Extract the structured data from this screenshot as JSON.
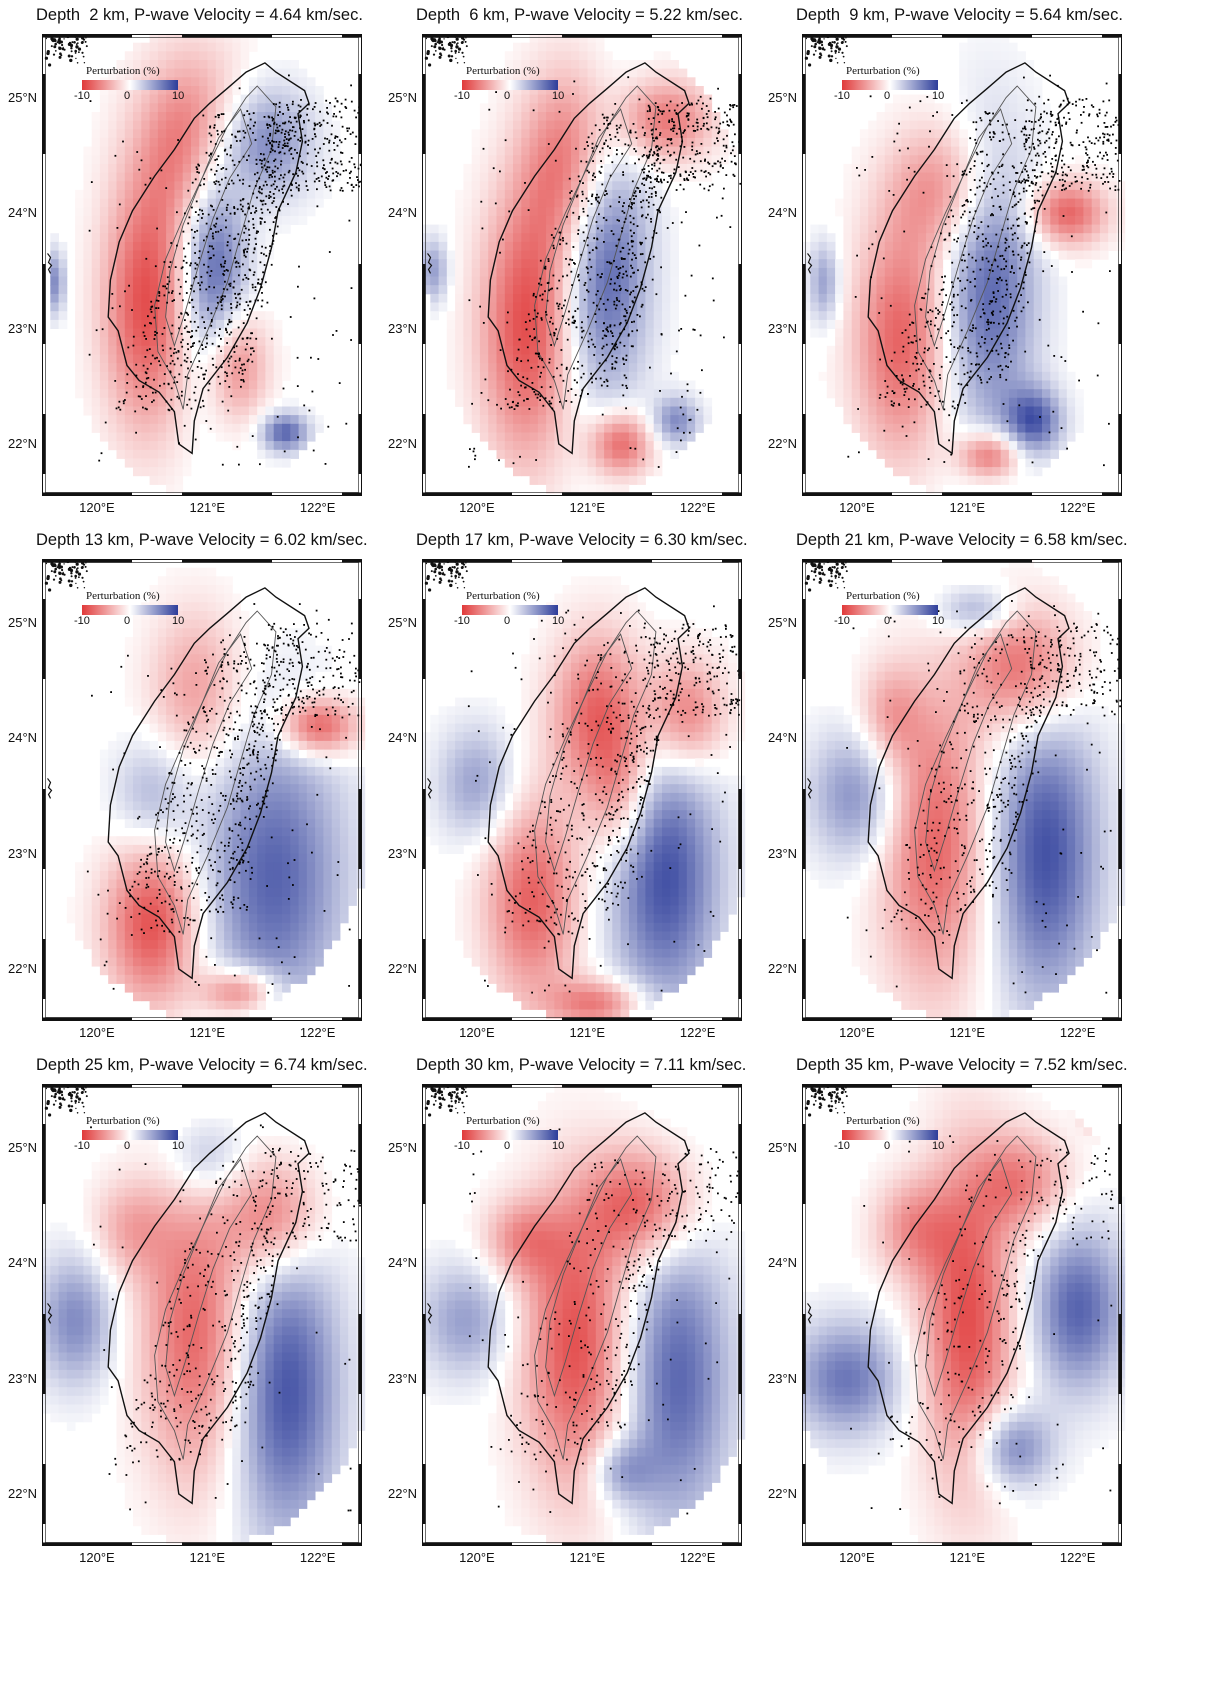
{
  "figure": {
    "panels": [
      {
        "title": "Depth  2 km, P-wave Velocity = 4.64 km/sec.",
        "depth_km": 2,
        "vp_km_s": 4.64
      },
      {
        "title": "Depth  6 km, P-wave Velocity = 5.22 km/sec.",
        "depth_km": 6,
        "vp_km_s": 5.22
      },
      {
        "title": "Depth  9 km, P-wave Velocity = 5.64 km/sec.",
        "depth_km": 9,
        "vp_km_s": 5.64
      },
      {
        "title": "Depth 13 km, P-wave Velocity = 6.02 km/sec.",
        "depth_km": 13,
        "vp_km_s": 6.02
      },
      {
        "title": "Depth 17 km, P-wave Velocity = 6.30 km/sec.",
        "depth_km": 17,
        "vp_km_s": 6.3
      },
      {
        "title": "Depth 21 km, P-wave Velocity = 6.58 km/sec.",
        "depth_km": 21,
        "vp_km_s": 6.58
      },
      {
        "title": "Depth 25 km, P-wave Velocity = 6.74 km/sec.",
        "depth_km": 25,
        "vp_km_s": 6.74
      },
      {
        "title": "Depth 30 km, P-wave Velocity = 7.11 km/sec.",
        "depth_km": 30,
        "vp_km_s": 7.11
      },
      {
        "title": "Depth 35 km, P-wave Velocity = 7.52 km/sec.",
        "depth_km": 35,
        "vp_km_s": 7.52
      }
    ],
    "lat_labels": [
      "25°N",
      "24°N",
      "23°N",
      "22°N"
    ],
    "lon_labels": [
      "120°E",
      "121°E",
      "122°E"
    ],
    "colorbar": {
      "title": "Perturbation (%)",
      "ticks": [
        "-10",
        "0",
        "10"
      ],
      "range": [
        -10,
        10
      ],
      "colors": {
        "negative": "#e03a3a",
        "zero": "#ffffff",
        "positive": "#2d3d9a"
      }
    },
    "map_colors": {
      "coastline": "#111111",
      "contour": "#555555",
      "seismicity": "#000000",
      "frame": "#111111"
    }
  }
}
